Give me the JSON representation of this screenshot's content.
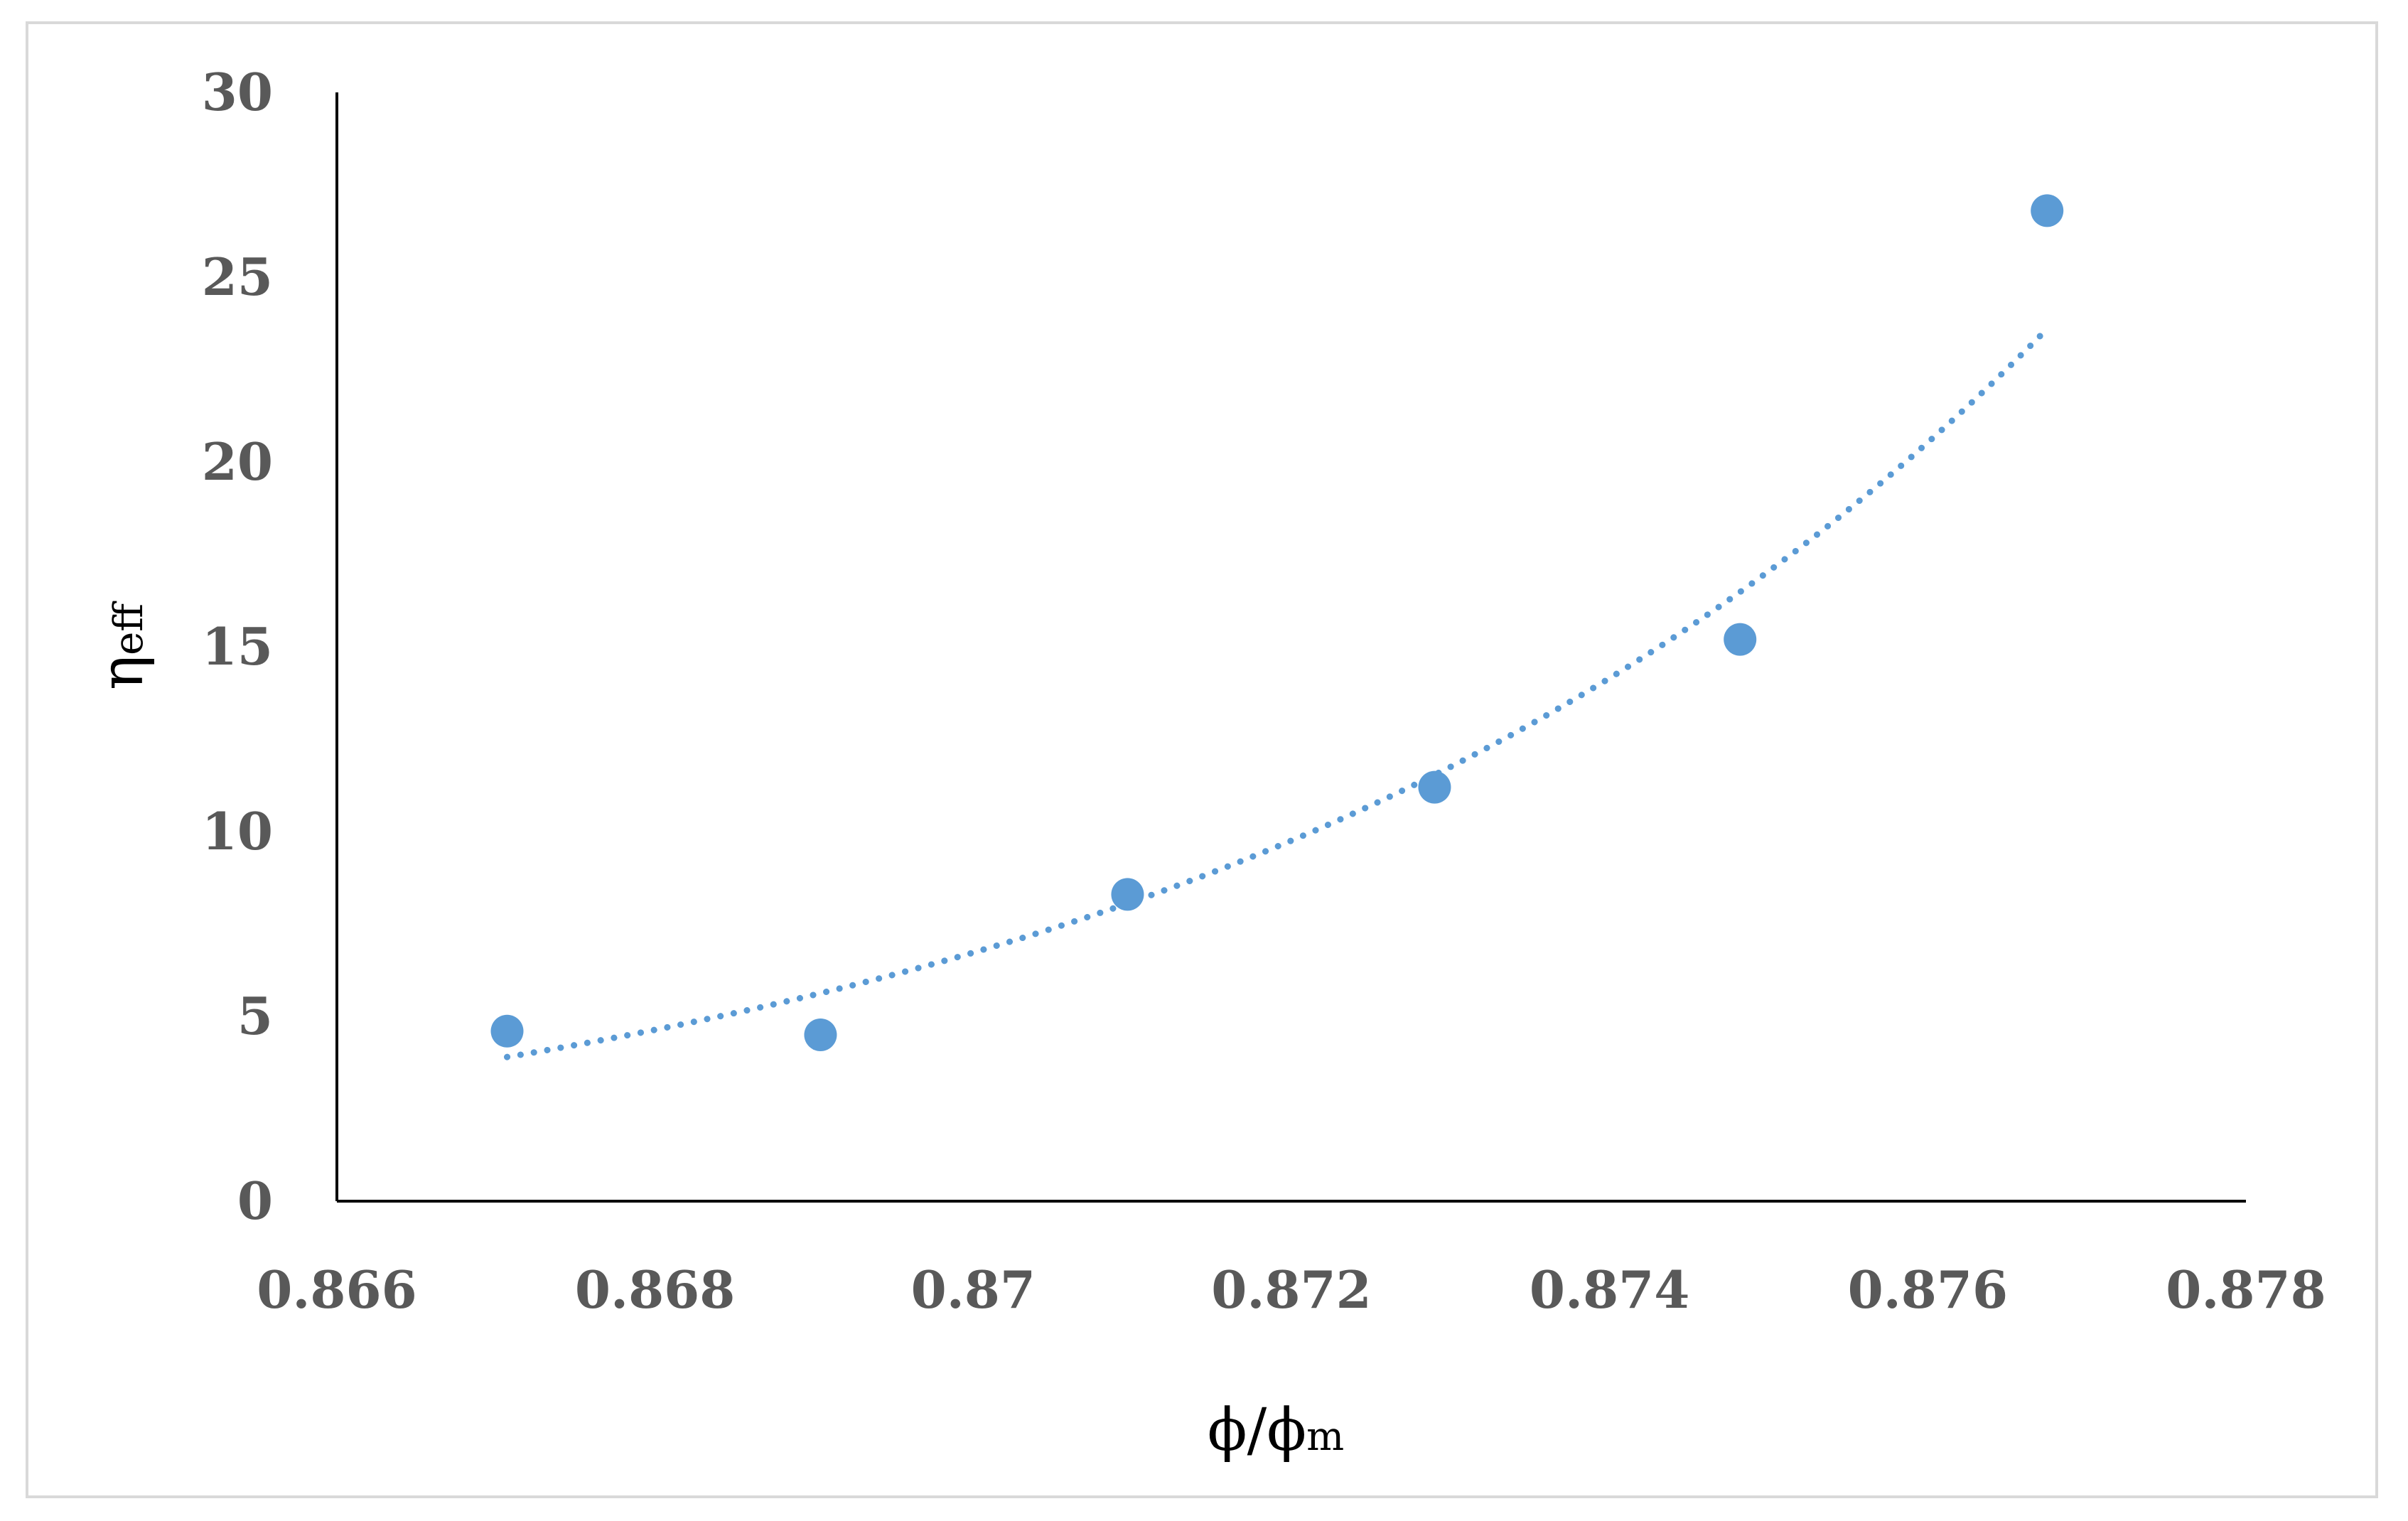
{
  "chart_data": {
    "type": "scatter",
    "title": "",
    "xlabel": "ϕ/ϕm",
    "xlabel_main": "ϕ/ϕ",
    "xlabel_sub": "m",
    "ylabel": "ηeff",
    "ylabel_main": "η",
    "ylabel_sub": "eff",
    "xlim": [
      0.866,
      0.878
    ],
    "ylim": [
      0,
      30
    ],
    "x_ticks": [
      0.866,
      0.868,
      0.87,
      0.872,
      0.874,
      0.876,
      0.878
    ],
    "x_tick_labels": [
      "0.866",
      "0.868",
      "0.87",
      "0.872",
      "0.874",
      "0.876",
      "0.878"
    ],
    "y_ticks": [
      0,
      5,
      10,
      15,
      20,
      25,
      30
    ],
    "y_tick_labels": [
      "0",
      "5",
      "10",
      "15",
      "20",
      "25",
      "30"
    ],
    "grid": false,
    "legend": "none",
    "series": [
      {
        "points": [
          {
            "x": 0.86707,
            "y": 4.6
          },
          {
            "x": 0.86904,
            "y": 4.5
          },
          {
            "x": 0.87097,
            "y": 8.3
          },
          {
            "x": 0.8729,
            "y": 11.2
          },
          {
            "x": 0.87482,
            "y": 15.2
          },
          {
            "x": 0.87675,
            "y": 26.8
          }
        ],
        "color": "#5b9bd5"
      }
    ],
    "trendline": {
      "type": "exponential",
      "style": "dotted",
      "color": "#5b9bd5",
      "x_range": [
        0.86707,
        0.87675
      ],
      "y_start": 3.9,
      "y_end": 23.6
    }
  }
}
